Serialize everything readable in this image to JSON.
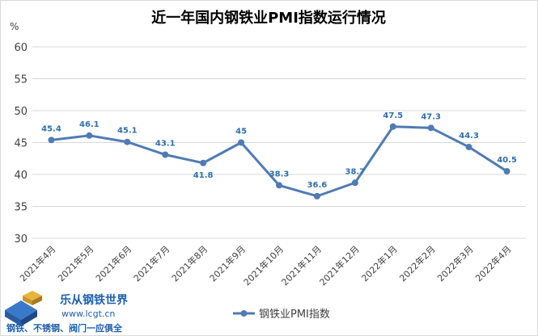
{
  "chart_data": {
    "type": "line",
    "title": "近一年国内钢铁业PMI指数运行情况",
    "y_unit": "%",
    "ylim": [
      30,
      60
    ],
    "y_ticks": [
      "30",
      "35",
      "40",
      "45",
      "50",
      "55",
      "60"
    ],
    "grid": true,
    "legend_position": "bottom",
    "categories": [
      "2021年4月",
      "2021年5月",
      "2021年6月",
      "2021年7月",
      "2021年8月",
      "2021年9月",
      "2021年10月",
      "2021年11月",
      "2021年12月",
      "2022年1月",
      "2022年2月",
      "2022年3月",
      "2022年4月"
    ],
    "series": [
      {
        "name": "钢铁业PMI指数",
        "values": [
          45.4,
          46.1,
          45.1,
          43.1,
          41.8,
          45,
          38.3,
          36.6,
          38.7,
          47.5,
          47.3,
          44.3,
          40.5
        ],
        "labels": [
          "45.4",
          "46.1",
          "45.1",
          "43.1",
          "41.8",
          "45",
          "38.3",
          "36.6",
          "38.7",
          "47.5",
          "47.3",
          "44.3",
          "40.5"
        ],
        "color": "#4f7bb4"
      }
    ]
  },
  "watermark": {
    "name": "乐从钢铁世界",
    "url": "www.lcgt.cn",
    "slogan": "钢铁、不锈钢、阀门一应俱全"
  },
  "colors": {
    "line": "#4f7bb4",
    "label": "#2e6fad",
    "grid": "#d9d9d9",
    "axis_text": "#404040",
    "watermark": "#1d5fb0"
  }
}
